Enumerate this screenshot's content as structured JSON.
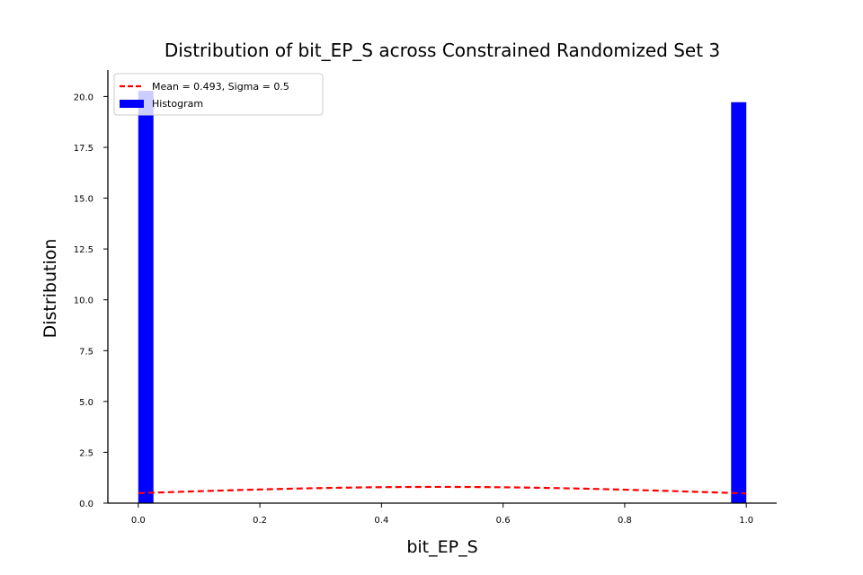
{
  "chart_data": {
    "type": "bar",
    "title": "Distribution of bit_EP_S across Constrained Randomized Set 3",
    "xlabel": "bit_EP_S",
    "ylabel": "Distribution",
    "xlim": [
      -0.05,
      1.05
    ],
    "ylim": [
      0,
      21.3
    ],
    "x_ticks": [
      0.0,
      0.2,
      0.4,
      0.6,
      0.8,
      1.0
    ],
    "x_tick_labels": [
      "0.0",
      "0.2",
      "0.4",
      "0.6",
      "0.8",
      "1.0"
    ],
    "y_ticks": [
      0.0,
      2.5,
      5.0,
      7.5,
      10.0,
      12.5,
      15.0,
      17.5,
      20.0
    ],
    "y_tick_labels": [
      "0.0",
      "2.5",
      "5.0",
      "7.5",
      "10.0",
      "12.5",
      "15.0",
      "17.5",
      "20.0"
    ],
    "grid": false,
    "legend_position": "top-left",
    "series": [
      {
        "name": "Histogram",
        "kind": "histogram",
        "color": "#0000ff",
        "bins": [
          {
            "x0": 0.0,
            "x1": 0.025,
            "value": 20.28
          },
          {
            "x0": 0.975,
            "x1": 1.0,
            "value": 19.72
          }
        ]
      },
      {
        "name": "Mean = 0.493, Sigma = 0.5",
        "kind": "normal-pdf",
        "color": "#ff0000",
        "line_style": "dashed",
        "mean": 0.493,
        "sigma": 0.5,
        "x_range": [
          0.0,
          1.0
        ]
      }
    ],
    "legend": [
      {
        "label": "Mean = 0.493, Sigma = 0.5",
        "symbol": "dashed-line",
        "color": "#ff0000"
      },
      {
        "label": "Histogram",
        "symbol": "patch",
        "color": "#0000ff"
      }
    ]
  }
}
